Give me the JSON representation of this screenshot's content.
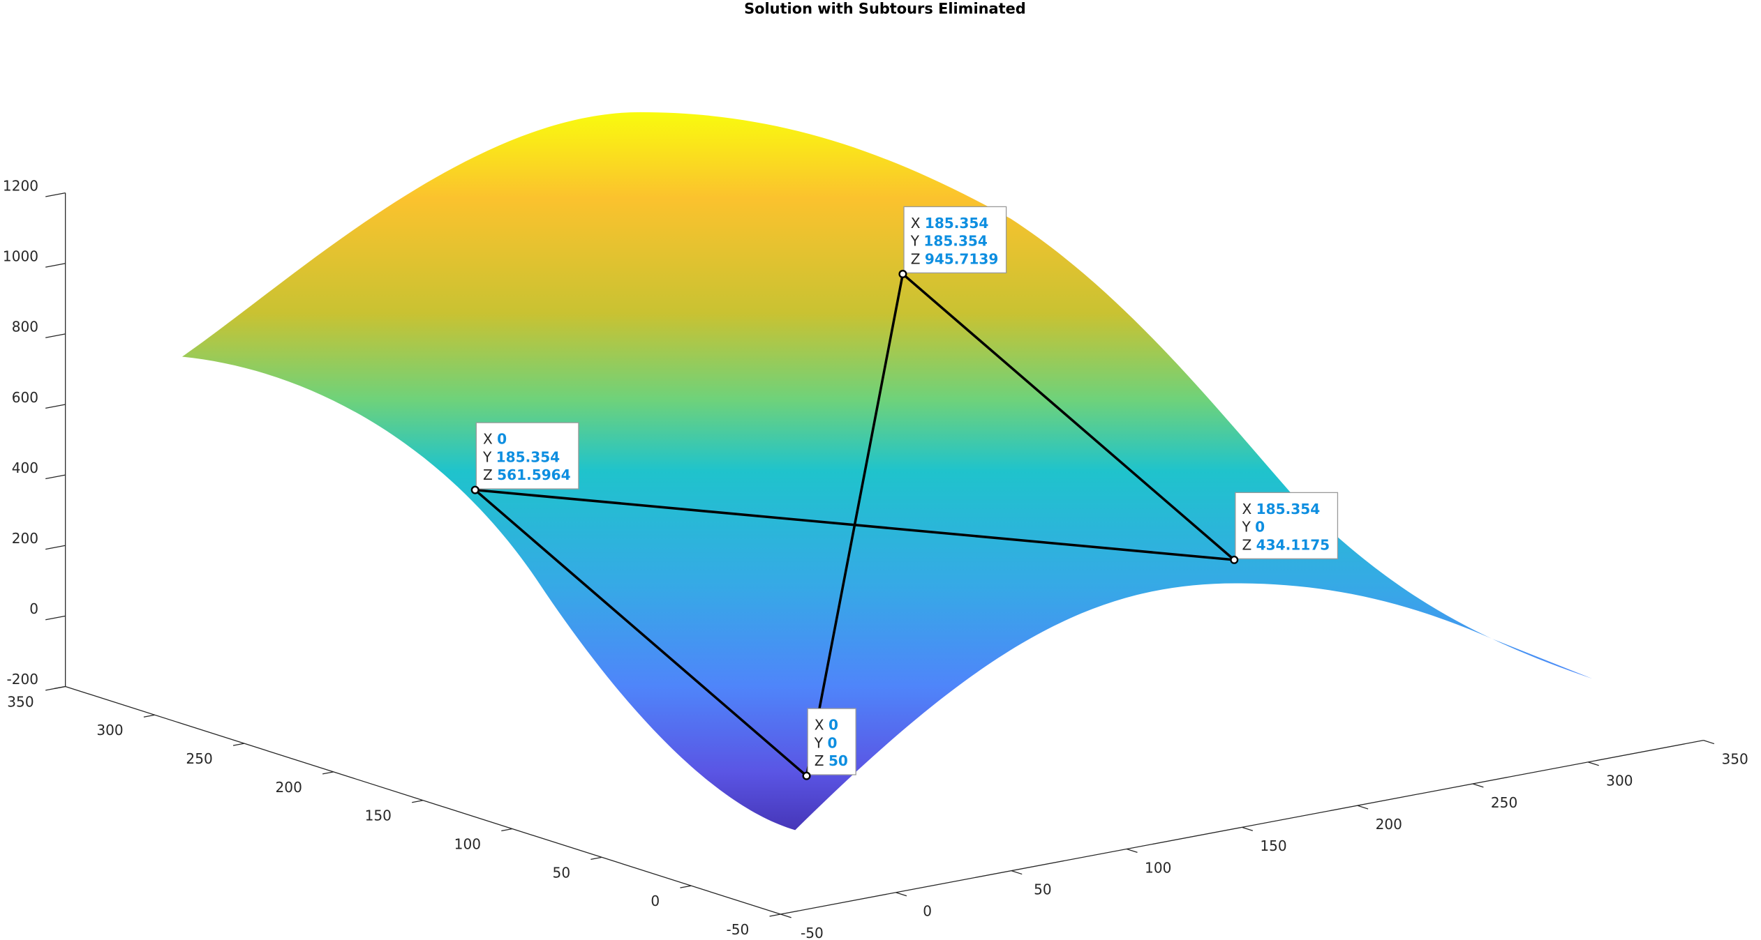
{
  "chart_data": {
    "type": "surface3d",
    "title": "Solution with Subtours Eliminated",
    "xlim": [
      -50,
      350
    ],
    "ylim": [
      -50,
      350
    ],
    "zlim": [
      -200,
      1200
    ],
    "xticks": [
      -50,
      0,
      50,
      100,
      150,
      200,
      250,
      300,
      350
    ],
    "yticks": [
      -50,
      0,
      50,
      100,
      150,
      200,
      250,
      300,
      350
    ],
    "zticks": [
      -200,
      0,
      200,
      400,
      600,
      800,
      1000,
      1200
    ],
    "tip_labels": [
      "X",
      "Y",
      "Z"
    ],
    "line_color": "#000000",
    "datatips": [
      {
        "x": 0,
        "y": 185.354,
        "z": 561.5964
      },
      {
        "x": 0,
        "y": 0,
        "z": 50
      },
      {
        "x": 185.354,
        "y": 185.354,
        "z": 945.7139
      },
      {
        "x": 185.354,
        "y": 0,
        "z": 434.1175
      }
    ]
  }
}
